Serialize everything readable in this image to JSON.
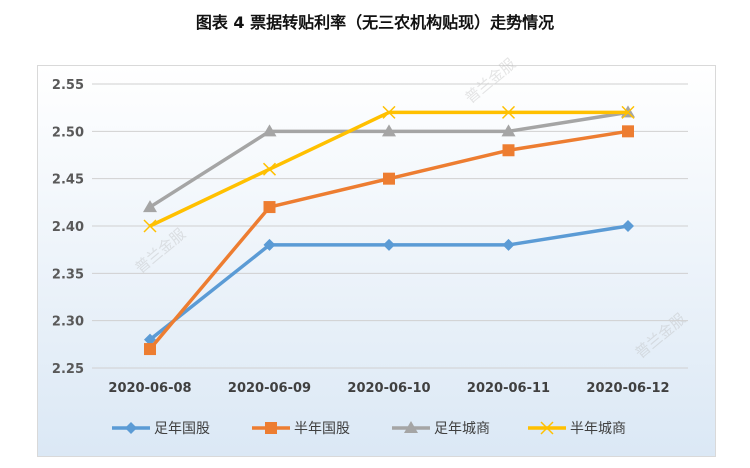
{
  "watermark": "普兰金服",
  "chart_data": {
    "type": "line",
    "title": "图表 4  票据转贴利率（无三农机构贴现）走势情况",
    "categories": [
      "2020-06-08",
      "2020-06-09",
      "2020-06-10",
      "2020-06-11",
      "2020-06-12"
    ],
    "series": [
      {
        "name": "足年国股",
        "color": "#5b9bd5",
        "marker": "diamond",
        "values": [
          2.28,
          2.38,
          2.38,
          2.38,
          2.4
        ]
      },
      {
        "name": "半年国股",
        "color": "#ed7d31",
        "marker": "square",
        "values": [
          2.27,
          2.42,
          2.45,
          2.48,
          2.5
        ]
      },
      {
        "name": "足年城商",
        "color": "#a5a5a5",
        "marker": "triangle",
        "values": [
          2.42,
          2.5,
          2.5,
          2.5,
          2.52
        ]
      },
      {
        "name": "半年城商",
        "color": "#ffc000",
        "marker": "x",
        "values": [
          2.4,
          2.46,
          2.52,
          2.52,
          2.52
        ]
      }
    ],
    "yticks": [
      "2.25",
      "2.30",
      "2.35",
      "2.40",
      "2.45",
      "2.50",
      "2.55"
    ],
    "ylim": [
      2.25,
      2.55
    ],
    "xlabel": "",
    "ylabel": "",
    "grid": true,
    "legend": "bottom"
  }
}
